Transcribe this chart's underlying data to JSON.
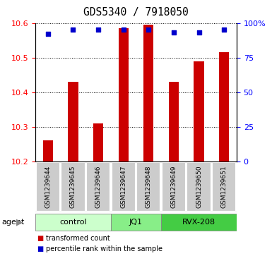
{
  "title": "GDS5340 / 7918050",
  "samples": [
    "GSM1239644",
    "GSM1239645",
    "GSM1239646",
    "GSM1239647",
    "GSM1239648",
    "GSM1239649",
    "GSM1239650",
    "GSM1239651"
  ],
  "bar_values": [
    10.26,
    10.43,
    10.31,
    10.585,
    10.595,
    10.43,
    10.49,
    10.515
  ],
  "percentile_values": [
    92,
    95,
    95,
    95,
    95,
    93,
    93,
    95
  ],
  "bar_bottom": 10.2,
  "ylim_left": [
    10.2,
    10.6
  ],
  "ylim_right": [
    0,
    100
  ],
  "yticks_left": [
    10.2,
    10.3,
    10.4,
    10.5,
    10.6
  ],
  "yticks_right": [
    0,
    25,
    50,
    75,
    100
  ],
  "ytick_labels_right": [
    "0",
    "25",
    "50",
    "75",
    "100%"
  ],
  "groups": [
    {
      "label": "control",
      "start": 0,
      "end": 3,
      "color": "#ccffcc"
    },
    {
      "label": "JQ1",
      "start": 3,
      "end": 5,
      "color": "#88ee88"
    },
    {
      "label": "RVX-208",
      "start": 5,
      "end": 8,
      "color": "#44cc44"
    }
  ],
  "bar_color": "#cc0000",
  "dot_color": "#0000cc",
  "agent_label": "agent",
  "legend_bar_label": "transformed count",
  "legend_dot_label": "percentile rank within the sample",
  "sample_box_color": "#cccccc",
  "bar_width": 0.4
}
